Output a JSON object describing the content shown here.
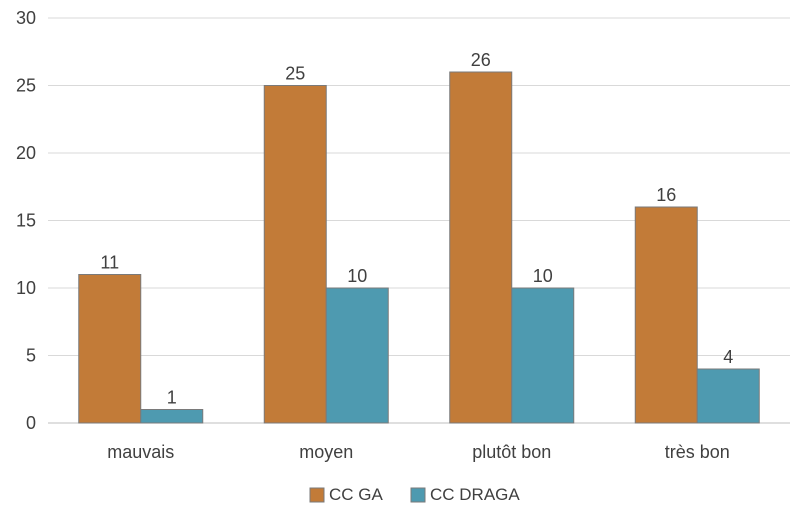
{
  "chart_data": {
    "type": "bar",
    "categories": [
      "mauvais",
      "moyen",
      "plutôt bon",
      "très bon"
    ],
    "series": [
      {
        "name": "CC GA",
        "values": [
          11,
          25,
          26,
          16
        ],
        "color": "#c27b38"
      },
      {
        "name": "CC DRAGA",
        "values": [
          1,
          10,
          10,
          4
        ],
        "color": "#4e9ab0"
      }
    ],
    "yticks": [
      0,
      5,
      10,
      15,
      20,
      25,
      30
    ],
    "ylim": [
      0,
      30
    ],
    "grid": true,
    "legend_position": "bottom-center",
    "data_labels": true,
    "title": "",
    "xlabel": "",
    "ylabel": ""
  }
}
